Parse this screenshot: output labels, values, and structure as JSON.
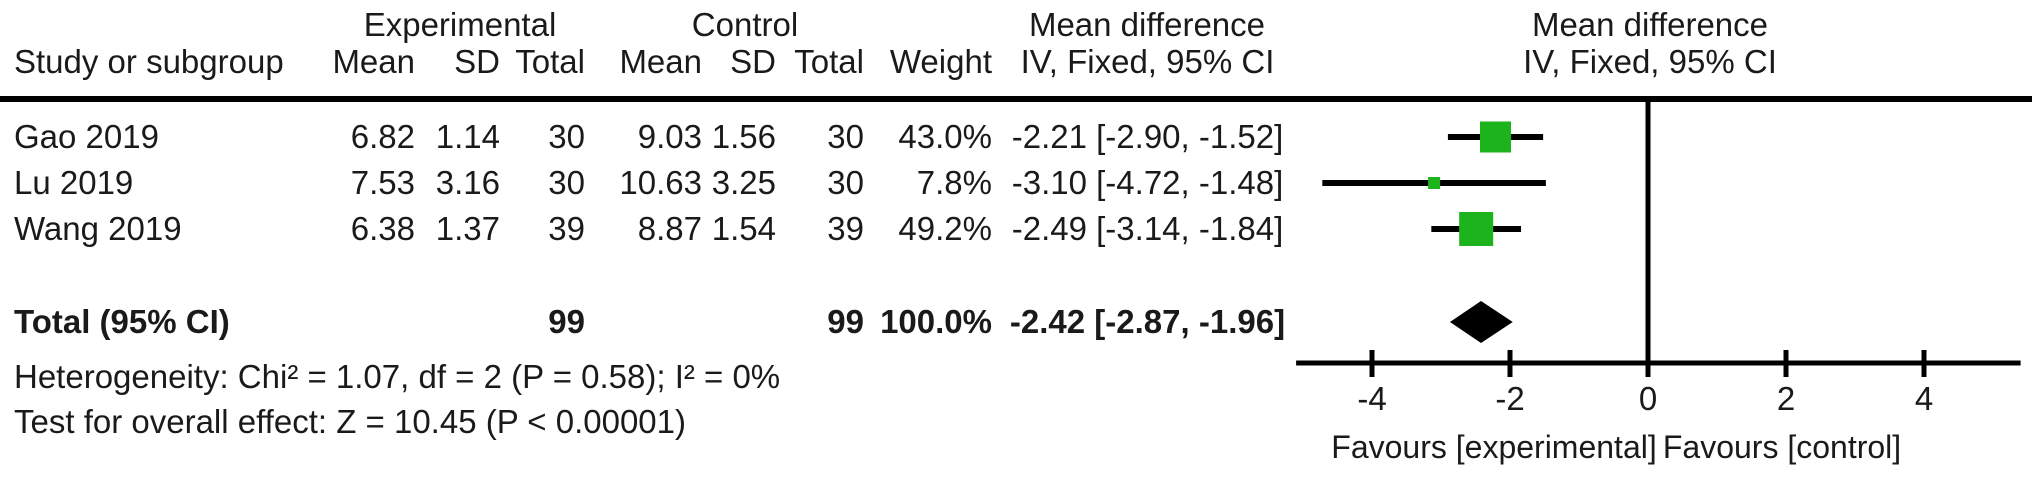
{
  "table": {
    "group_headers": {
      "experimental": "Experimental",
      "control": "Control",
      "mean_difference_left": "Mean difference",
      "mean_difference_right": "Mean difference"
    },
    "column_headers": {
      "study": "Study or subgroup",
      "mean_exp": "Mean",
      "sd_exp": "SD",
      "total_exp": "Total",
      "mean_ctrl": "Mean",
      "sd_ctrl": "SD",
      "total_ctrl": "Total",
      "weight": "Weight",
      "iv_fixed_left": "IV, Fixed, 95% CI",
      "iv_fixed_right": "IV, Fixed, 95% CI"
    },
    "rows": [
      {
        "study": "Gao 2019",
        "mean_exp": "6.82",
        "sd_exp": "1.14",
        "total_exp": "30",
        "mean_ctrl": "9.03",
        "sd_ctrl": "1.56",
        "total_ctrl": "30",
        "weight": "43.0%",
        "ci_text": "-2.21 [-2.90, -1.52]"
      },
      {
        "study": "Lu 2019",
        "mean_exp": "7.53",
        "sd_exp": "3.16",
        "total_exp": "30",
        "mean_ctrl": "10.63",
        "sd_ctrl": "3.25",
        "total_ctrl": "30",
        "weight": "7.8%",
        "ci_text": "-3.10 [-4.72, -1.48]"
      },
      {
        "study": "Wang 2019",
        "mean_exp": "6.38",
        "sd_exp": "1.37",
        "total_exp": "39",
        "mean_ctrl": "8.87",
        "sd_ctrl": "1.54",
        "total_ctrl": "39",
        "weight": "49.2%",
        "ci_text": "-2.49 [-3.14, -1.84]"
      }
    ],
    "total_row": {
      "label": "Total (95% CI)",
      "total_exp": "99",
      "total_ctrl": "99",
      "weight": "100.0%",
      "ci_text": "-2.42 [-2.87, -1.96]"
    },
    "heterogeneity": "Heterogeneity: Chi² = 1.07, df = 2 (P = 0.58); I² = 0%",
    "overall_effect": "Test for overall effect: Z = 10.45 (P < 0.00001)"
  },
  "chart_data": {
    "type": "forest",
    "effect_measure": "Mean difference",
    "model": "IV, Fixed, 95% CI",
    "x_ticks": [
      -4,
      -2,
      0,
      2,
      4
    ],
    "xlim": [
      -5.1,
      5.4
    ],
    "studies": [
      {
        "label": "Gao 2019",
        "md": -2.21,
        "ci_low": -2.9,
        "ci_high": -1.52,
        "weight_pct": 43.0
      },
      {
        "label": "Lu 2019",
        "md": -3.1,
        "ci_low": -4.72,
        "ci_high": -1.48,
        "weight_pct": 7.8
      },
      {
        "label": "Wang 2019",
        "md": -2.49,
        "ci_low": -3.14,
        "ci_high": -1.84,
        "weight_pct": 49.2
      }
    ],
    "total": {
      "label": "Total (95% CI)",
      "md": -2.42,
      "ci_low": -2.87,
      "ci_high": -1.96,
      "weight_pct": 100.0
    },
    "favours_left": "Favours [experimental]",
    "favours_right": "Favours [control]",
    "marker_color": "#1db31d",
    "line_color": "#000000",
    "grid": false,
    "legend": false
  }
}
